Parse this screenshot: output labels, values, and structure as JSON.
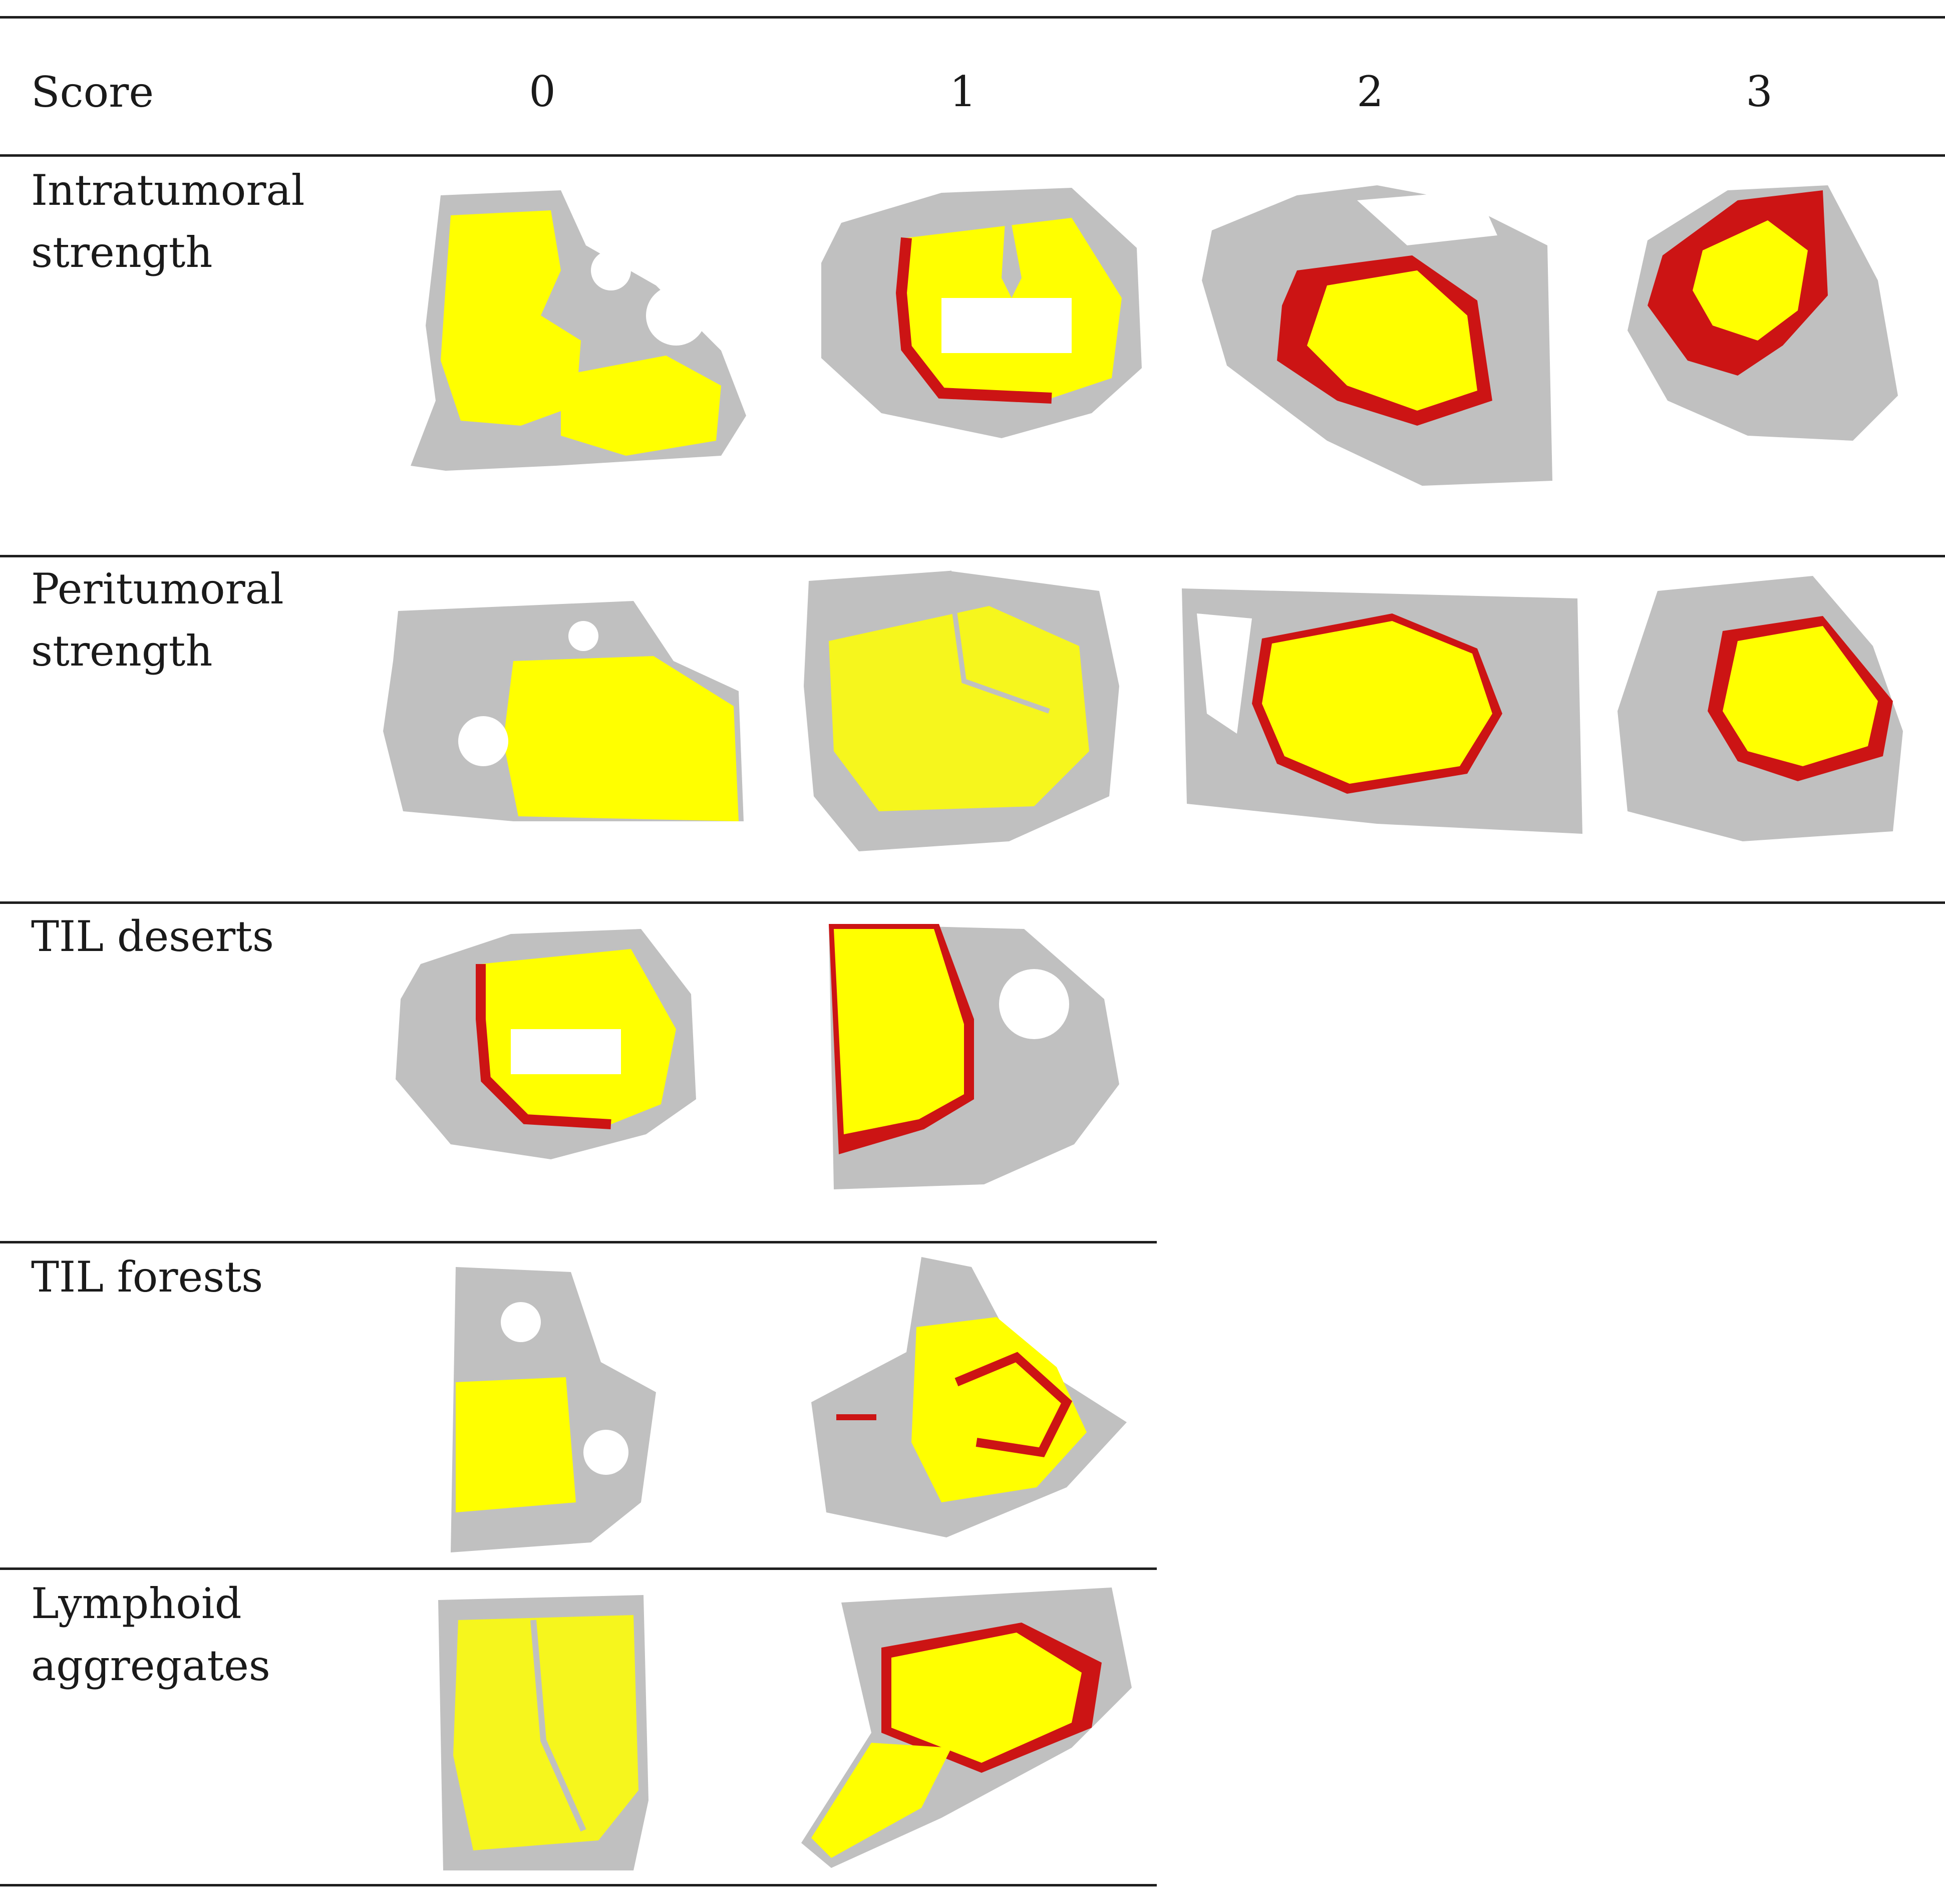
{
  "table": {
    "header": {
      "score_label": "Score",
      "scores": [
        "0",
        "1",
        "2",
        "3"
      ]
    },
    "rows": [
      {
        "label": "Intratumoral\nstrength",
        "panels": [
          "0",
          "1",
          "2",
          "3"
        ]
      },
      {
        "label": "Peritumoral\nstrength",
        "panels": [
          "0",
          "1",
          "2",
          "3"
        ]
      },
      {
        "label": "TIL deserts",
        "panels": [
          "0",
          "1"
        ]
      },
      {
        "label": "TIL forests",
        "panels": [
          "0",
          "1"
        ]
      },
      {
        "label": "Lymphoid\naggregates",
        "panels": [
          "0",
          "1"
        ]
      }
    ]
  },
  "colors": {
    "tissue": "#c0c0c0",
    "tumor": "#ffff00",
    "til": "#cc1414",
    "rule": "#1f1f1f"
  }
}
